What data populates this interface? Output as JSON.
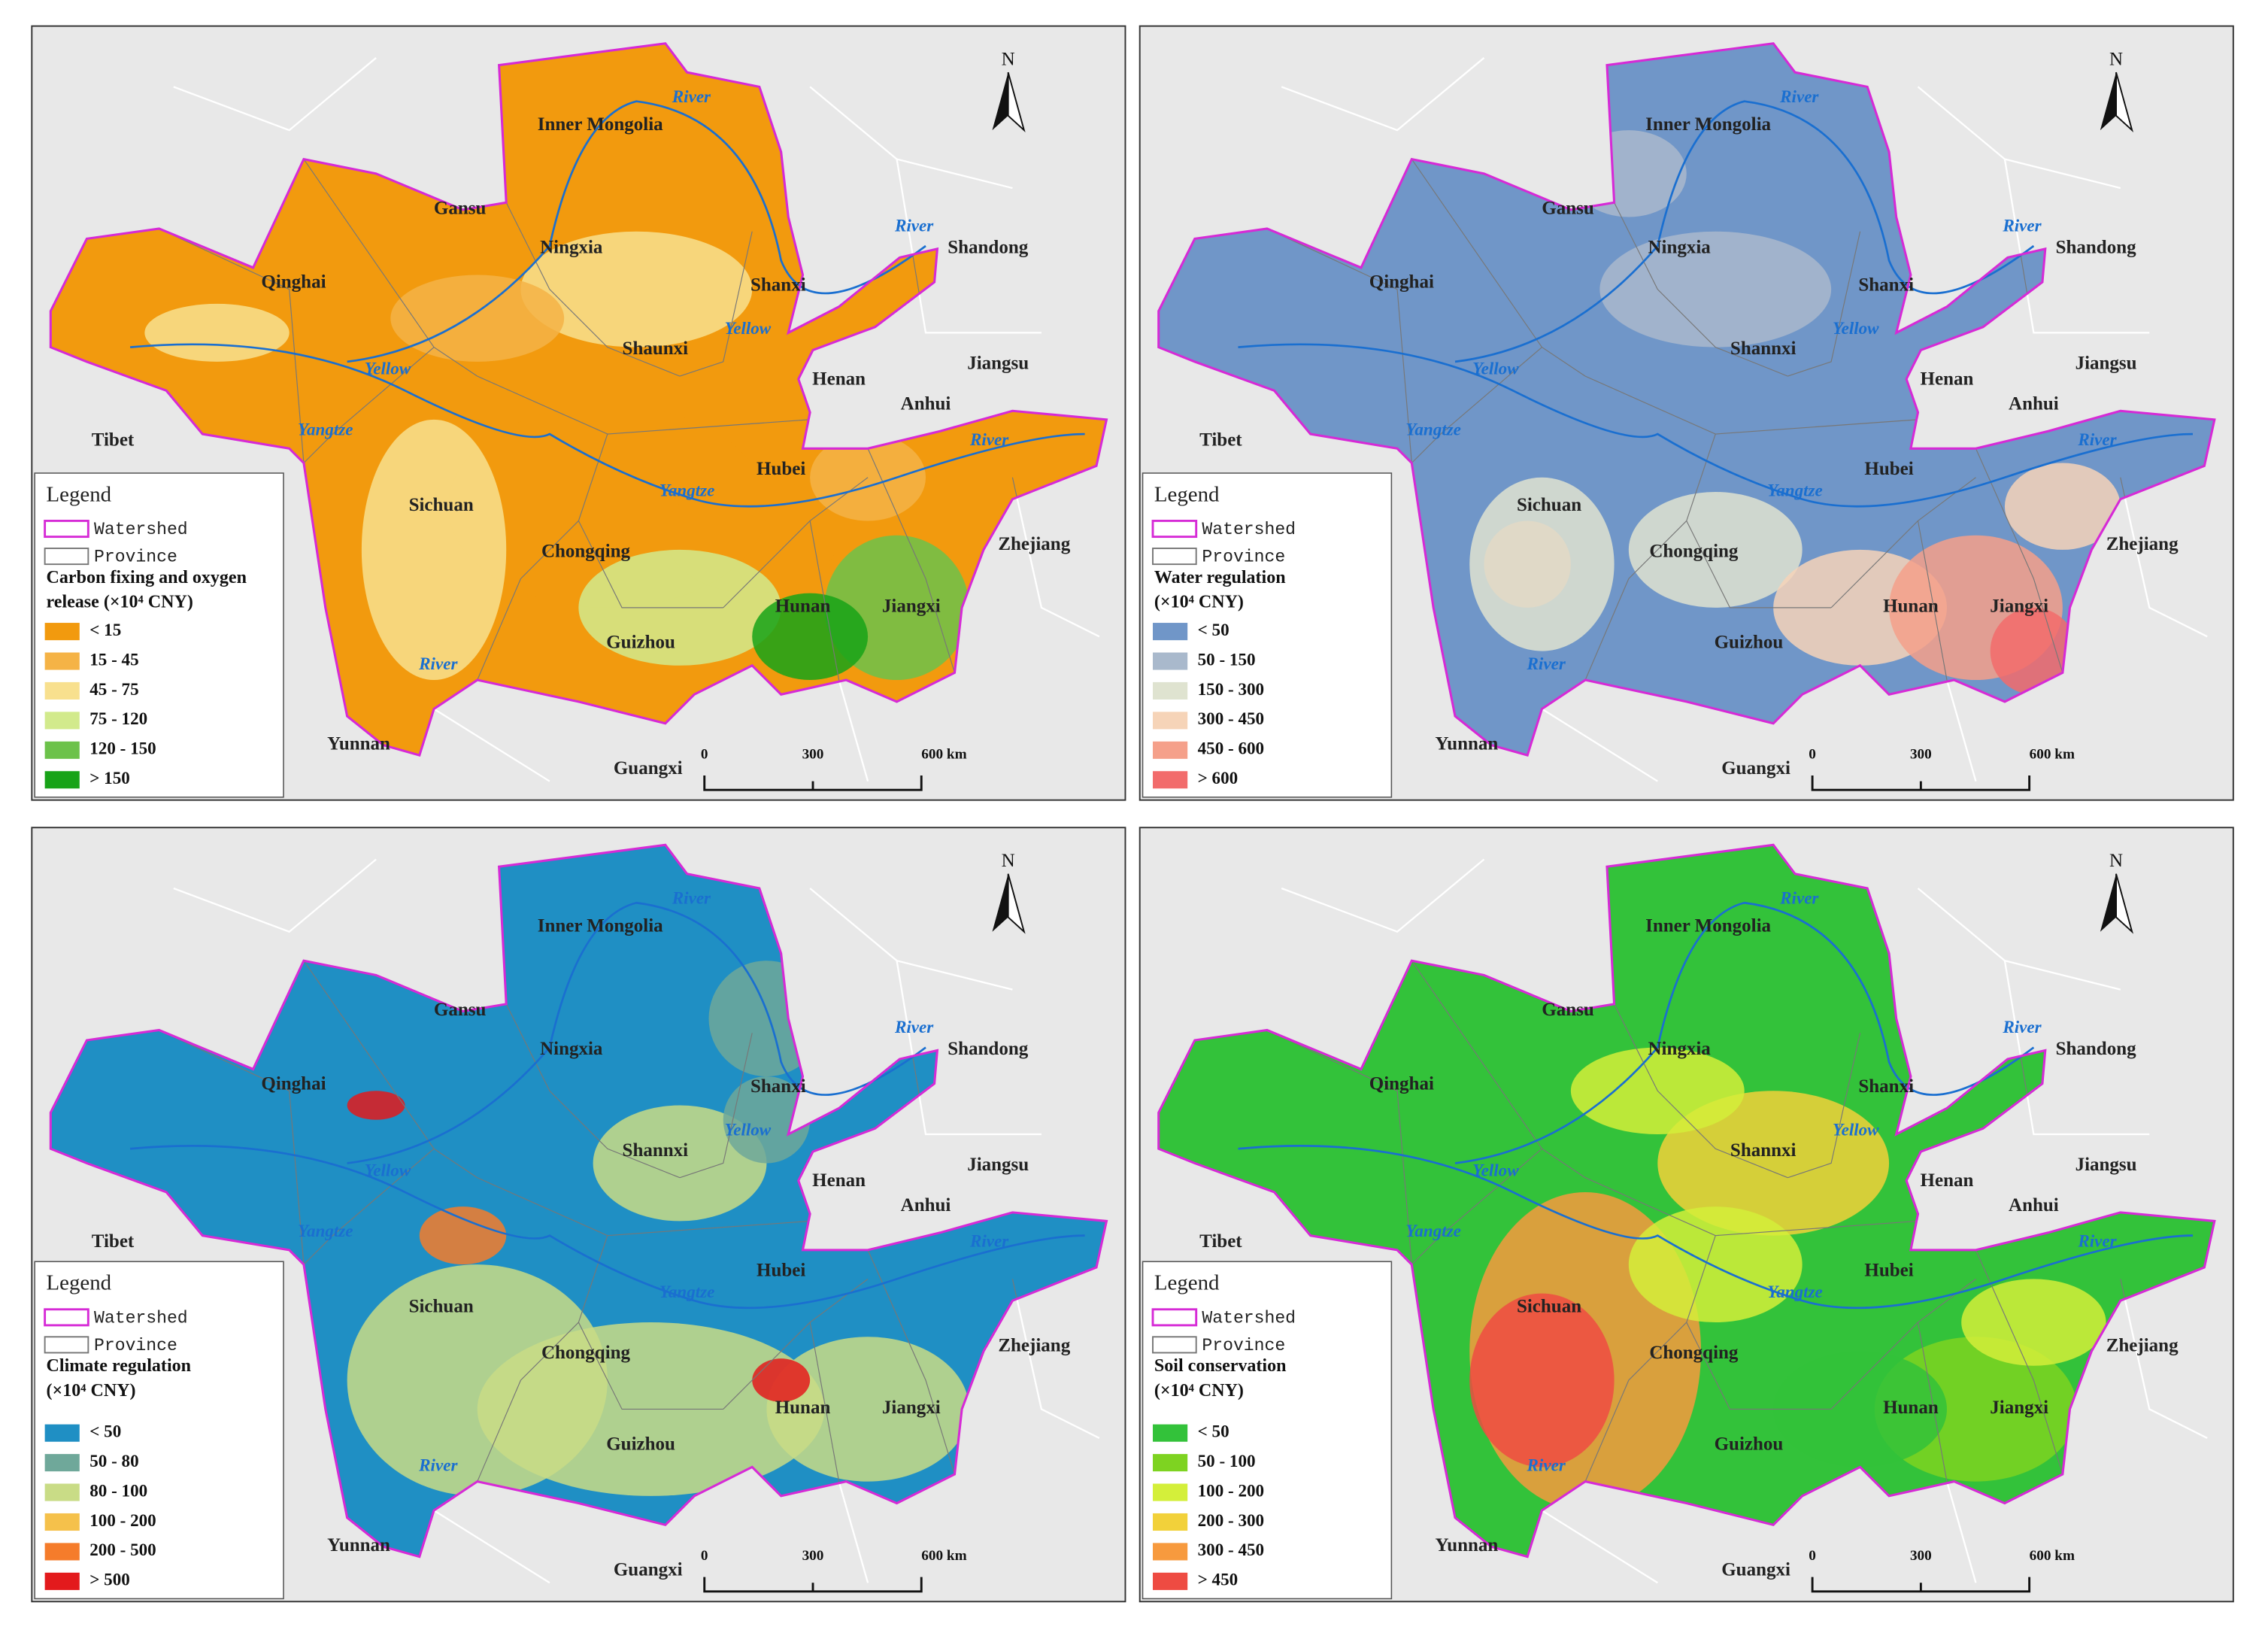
{
  "maps": [
    {
      "labels": [
        "Inner Mongolia",
        "River",
        "Gansu",
        "Ningxia",
        "River",
        "Shandong",
        "Qinghai",
        "Shanxi",
        "Yellow",
        "Shaunxi",
        "Yellow",
        "Henan",
        "Jiangsu",
        "Anhui",
        "Tibet",
        "Yangtze",
        "River",
        "Hubei",
        "Yangtze",
        "Sichuan",
        "Chongqing",
        "Zhejiang",
        "Hunan",
        "Jiangxi",
        "Guizhou",
        "River",
        "Yunnan",
        "Guangxi"
      ],
      "legend": {
        "heading": "Legend",
        "watershed": "Watershed",
        "province": "Province",
        "title_lines": [
          "Carbon fixing and oxygen",
          "release (×10⁴ CNY)"
        ],
        "classes": [
          {
            "label": "< 15",
            "color": "#f29a0e"
          },
          {
            "label": "15 - 45",
            "color": "#f5b346"
          },
          {
            "label": "45 - 75",
            "color": "#f8e08e"
          },
          {
            "label": "75 - 120",
            "color": "#d2ea8c"
          },
          {
            "label": "120 - 150",
            "color": "#6cc24a"
          },
          {
            "label": "> 150",
            "color": "#18a318"
          }
        ]
      },
      "scale": [
        "0",
        "300",
        "600 km"
      ],
      "north": "N"
    },
    {
      "labels": [
        "Inner Mongolia",
        "River",
        "Gansu",
        "Ningxia",
        "River",
        "Shandong",
        "Qinghai",
        "Shanxi",
        "Yellow",
        "Shannxi",
        "Yellow",
        "Henan",
        "Jiangsu",
        "Anhui",
        "Tibet",
        "Yangtze",
        "River",
        "Hubei",
        "Yangtze",
        "Sichuan",
        "Chongqing",
        "Zhejiang",
        "Hunan",
        "Jiangxi",
        "Guizhou",
        "River",
        "Yunnan",
        "Guangxi"
      ],
      "legend": {
        "heading": "Legend",
        "watershed": "Watershed",
        "province": "Province",
        "title_lines": [
          "Water regulation",
          "(×10⁴ CNY)"
        ],
        "classes": [
          {
            "label": "< 50",
            "color": "#7096c8"
          },
          {
            "label": "50 - 150",
            "color": "#a9b9cc"
          },
          {
            "label": "150 - 300",
            "color": "#dfe3d0"
          },
          {
            "label": "300 - 450",
            "color": "#f6d4b8"
          },
          {
            "label": "450 - 600",
            "color": "#f5a08a"
          },
          {
            "label": "> 600",
            "color": "#f26b6b"
          }
        ]
      },
      "scale": [
        "0",
        "300",
        "600 km"
      ],
      "north": "N"
    },
    {
      "labels": [
        "Inner Mongolia",
        "River",
        "Gansu",
        "Ningxia",
        "River",
        "Shandong",
        "Qinghai",
        "Shanxi",
        "Yellow",
        "Shannxi",
        "Yellow",
        "Henan",
        "Jiangsu",
        "Anhui",
        "Tibet",
        "Yangtze",
        "River",
        "Hubei",
        "Yangtze",
        "Sichuan",
        "Chongqing",
        "Zhejiang",
        "Hunan",
        "Jiangxi",
        "Guizhou",
        "River",
        "Yunnan",
        "Guangxi"
      ],
      "legend": {
        "heading": "Legend",
        "watershed": "Watershed",
        "province": "Province",
        "title_lines": [
          "Climate regulation",
          "(×10⁴ CNY)"
        ],
        "classes": [
          {
            "label": "< 50",
            "color": "#1f8fc4"
          },
          {
            "label": "50 - 80",
            "color": "#6fa89a"
          },
          {
            "label": "80 - 100",
            "color": "#c9dc86"
          },
          {
            "label": "100 - 200",
            "color": "#f5c14b"
          },
          {
            "label": "200 - 500",
            "color": "#f57c2b"
          },
          {
            "label": "> 500",
            "color": "#e31a1c"
          }
        ]
      },
      "scale": [
        "0",
        "300",
        "600 km"
      ],
      "north": "N"
    },
    {
      "labels": [
        "Inner Mongolia",
        "River",
        "Gansu",
        "Ningxia",
        "River",
        "Shandong",
        "Qinghai",
        "Shanxi",
        "Yellow",
        "Shannxi",
        "Yellow",
        "Henan",
        "Jiangsu",
        "Anhui",
        "Tibet",
        "Yangtze",
        "River",
        "Hubei",
        "Yangtze",
        "Sichuan",
        "Chongqing",
        "Zhejiang",
        "Hunan",
        "Jiangxi",
        "Guizhou",
        "River",
        "Yunnan",
        "Guangxi"
      ],
      "legend": {
        "heading": "Legend",
        "watershed": "Watershed",
        "province": "Province",
        "title_lines": [
          "Soil conservation",
          "(×10⁴ CNY)"
        ],
        "classes": [
          {
            "label": "< 50",
            "color": "#33c23a"
          },
          {
            "label": "50 - 100",
            "color": "#7ed321"
          },
          {
            "label": "100 - 200",
            "color": "#d4ef3a"
          },
          {
            "label": "200 - 300",
            "color": "#f2d13a"
          },
          {
            "label": "300 - 450",
            "color": "#f79a3e"
          },
          {
            "label": "> 450",
            "color": "#ee4b42"
          }
        ]
      },
      "scale": [
        "0",
        "300",
        "600 km"
      ],
      "north": "N"
    }
  ]
}
